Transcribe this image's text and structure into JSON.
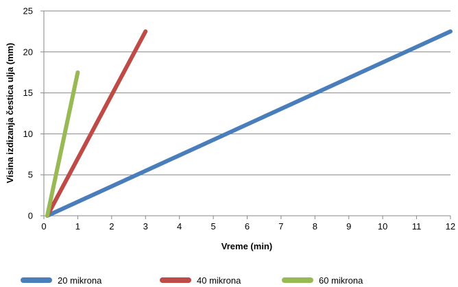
{
  "chart_data": {
    "type": "line",
    "title": "",
    "xlabel": "Vreme (min)",
    "ylabel": "Visina izdizanja čestica ulja (mm)",
    "xlim": [
      0,
      12
    ],
    "ylim": [
      0,
      25
    ],
    "x_ticks": [
      "0",
      "1",
      "2",
      "3",
      "4",
      "5",
      "6",
      "7",
      "8",
      "9",
      "10",
      "11",
      "12"
    ],
    "y_ticks": [
      "0",
      "5",
      "10",
      "15",
      "20",
      "25"
    ],
    "grid": "horizontal",
    "legend_position": "bottom",
    "series": [
      {
        "name": "20 mikrona",
        "color": "#4a7ebb",
        "points": [
          [
            0.1,
            0
          ],
          [
            12,
            22.5
          ]
        ]
      },
      {
        "name": "40 mikrona",
        "color": "#be4b48",
        "points": [
          [
            0.1,
            0
          ],
          [
            3,
            22.5
          ]
        ]
      },
      {
        "name": "60 mikrona",
        "color": "#98b954",
        "points": [
          [
            0.1,
            0
          ],
          [
            1,
            17.5
          ]
        ]
      }
    ]
  }
}
